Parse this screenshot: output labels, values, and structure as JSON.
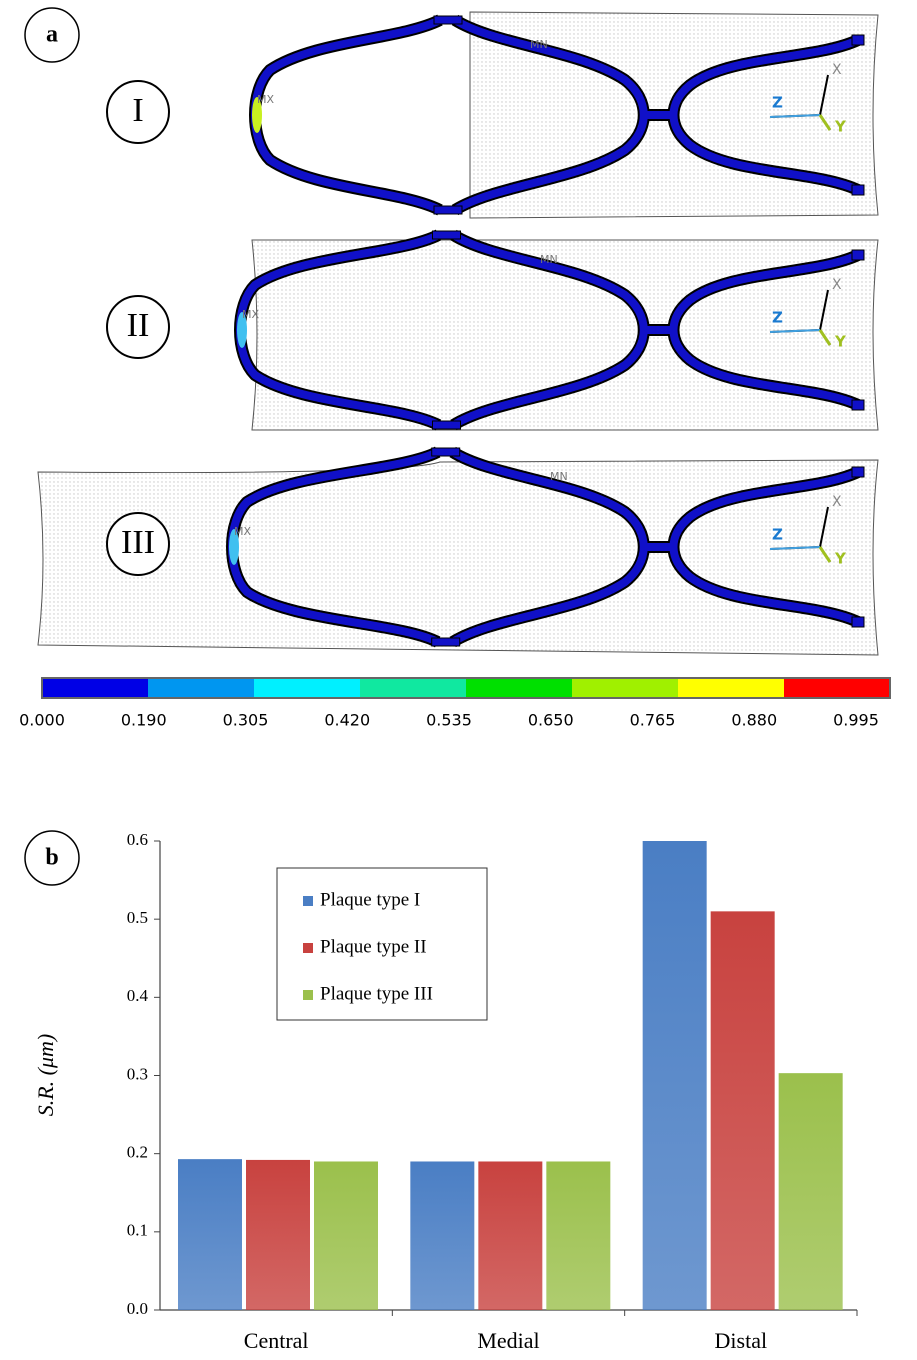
{
  "panel_a": {
    "label": "a",
    "rows": [
      "I",
      "II",
      "III"
    ],
    "annotations": {
      "max": "MX",
      "min": "MN",
      "axis_x": "X",
      "axis_y": "Y",
      "axis_z": "Z"
    },
    "colorbar": {
      "ticks": [
        {
          "value": 0,
          "label": "0.000"
        },
        {
          "value": 0.19,
          "label": "0.190"
        },
        {
          "value": 0.305,
          "label": "0.305"
        },
        {
          "value": 0.42,
          "label": "0.420"
        },
        {
          "value": 0.535,
          "label": "0.535"
        },
        {
          "value": 0.65,
          "label": "0.650"
        },
        {
          "value": 0.765,
          "label": "0.765"
        },
        {
          "value": 0.88,
          "label": "0.880"
        },
        {
          "value": 0.995,
          "label": "0.995"
        }
      ],
      "colors": [
        "#0000e6",
        "#0096f0",
        "#00f0ff",
        "#10e8a0",
        "#00e000",
        "#a0f000",
        "#ffff00",
        "#ff0000"
      ]
    }
  },
  "chart_data": {
    "type": "bar",
    "panel_label": "b",
    "y_label": "S.R. (μm)",
    "categories": [
      "Central",
      "Medial",
      "Distal"
    ],
    "series": [
      {
        "name": "Plaque type I",
        "color": "#4a7ec4",
        "values": [
          0.193,
          0.19,
          0.6
        ]
      },
      {
        "name": "Plaque type II",
        "color": "#c8423f",
        "values": [
          0.192,
          0.19,
          0.51
        ]
      },
      {
        "name": "Plaque type III",
        "color": "#9bc04c",
        "values": [
          0.19,
          0.19,
          0.303
        ]
      }
    ],
    "ylim": [
      0,
      0.6
    ],
    "yticks": [
      {
        "value": 0,
        "label": "0.0"
      },
      0.1,
      0.2,
      0.3,
      0.4,
      0.5,
      0.6
    ]
  }
}
